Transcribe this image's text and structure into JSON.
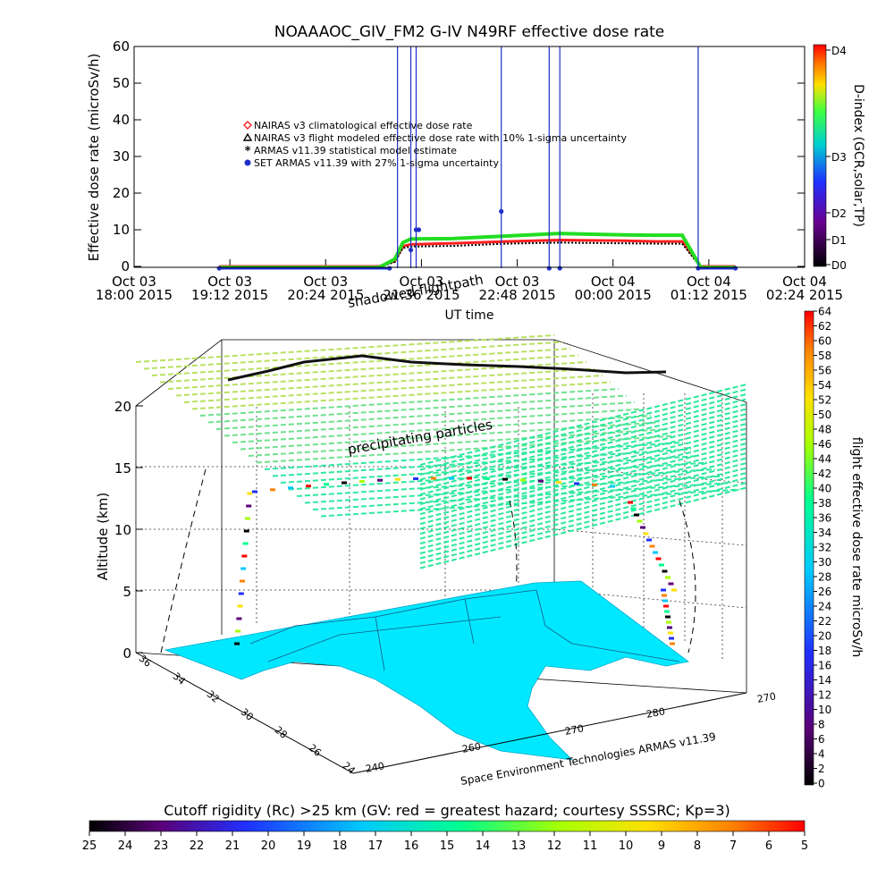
{
  "chart_data": [
    {
      "type": "line",
      "title": "NOAAAOC_GIV_FM2  G-IV    N49RF  effective dose rate",
      "ylabel": "Effective dose rate  (microSv/h)",
      "xlabel": "UT time",
      "ylim": [
        0,
        60
      ],
      "yticks": [
        "0",
        "10",
        "20",
        "30",
        "40",
        "50",
        "60"
      ],
      "xtick_lines": [
        [
          "Oct 03",
          "18:00 2015"
        ],
        [
          "Oct 03",
          "19:12 2015"
        ],
        [
          "Oct 03",
          "20:24 2015"
        ],
        [
          "Oct 03",
          "21:36 2015"
        ],
        [
          "Oct 03",
          "22:48 2015"
        ],
        [
          "Oct 04",
          "00:00 2015"
        ],
        [
          "Oct 04",
          "01:12 2015"
        ],
        [
          "Oct 04",
          "02:24 2015"
        ]
      ],
      "x_hours_since_start": [
        0,
        1.2,
        2.4,
        3.6,
        4.8,
        6.0,
        7.2,
        8.4
      ],
      "legend": [
        {
          "marker": "diamond",
          "color": "#ff2020",
          "label": "NAIRAS v3 climatological effective dose rate"
        },
        {
          "marker": "triangle",
          "color": "#000000",
          "label": "NAIRAS v3 flight modeled effective dose rate with 10% 1-sigma uncertainty"
        },
        {
          "marker": "asterisk",
          "color": "#22cc22",
          "label": "ARMAS v11.39 statistical model estimate"
        },
        {
          "marker": "dot",
          "color": "#1e30c8",
          "label": "SET ARMAS v11.39 with 27% 1-sigma uncertainty"
        }
      ],
      "series": [
        {
          "name": "NAIRAS v3 climatological effective dose rate",
          "points": [
            [
              1.6,
              0
            ],
            [
              4.6,
              0
            ],
            [
              4.9,
              1.5
            ],
            [
              5.05,
              5.5
            ],
            [
              5.2,
              6
            ],
            [
              6,
              6.3
            ],
            [
              7,
              6.8
            ],
            [
              8,
              7.2
            ],
            [
              8.5,
              7.1
            ],
            [
              9.2,
              7.0
            ],
            [
              9.8,
              6.8
            ],
            [
              10.3,
              6.8
            ],
            [
              10.5,
              3
            ],
            [
              10.65,
              0
            ],
            [
              11.3,
              0
            ]
          ]
        },
        {
          "name": "NAIRAS v3 flight modeled effective dose rate with 10% 1-sigma uncertainty",
          "points": [
            [
              1.6,
              -0.2
            ],
            [
              4.6,
              -0.2
            ],
            [
              4.9,
              1.2
            ],
            [
              5.05,
              5
            ],
            [
              5.2,
              5.4
            ],
            [
              6,
              5.6
            ],
            [
              7,
              6.2
            ],
            [
              8,
              6.5
            ],
            [
              8.5,
              6.4
            ],
            [
              9.2,
              6.3
            ],
            [
              9.8,
              6.2
            ],
            [
              10.3,
              6.2
            ],
            [
              10.5,
              2.5
            ],
            [
              10.65,
              -0.2
            ],
            [
              11.3,
              -0.2
            ]
          ]
        },
        {
          "name": "ARMAS v11.39 statistical model estimate",
          "points": [
            [
              1.6,
              -0.3
            ],
            [
              4.6,
              -0.3
            ],
            [
              4.9,
              2
            ],
            [
              5.05,
              6.5
            ],
            [
              5.2,
              7.5
            ],
            [
              6,
              7.6
            ],
            [
              7,
              8.3
            ],
            [
              8,
              9.0
            ],
            [
              8.5,
              8.8
            ],
            [
              9.2,
              8.6
            ],
            [
              9.8,
              8.5
            ],
            [
              10.3,
              8.5
            ],
            [
              10.5,
              3.5
            ],
            [
              10.65,
              -0.3
            ],
            [
              11.3,
              -0.3
            ]
          ]
        },
        {
          "name": "SET ARMAS v11.39 with 27% 1-sigma uncertainty",
          "points": [
            [
              1.6,
              -0.5
            ],
            [
              4.8,
              -0.5
            ],
            [
              5.2,
              4.5
            ],
            [
              5.3,
              10
            ],
            [
              5.35,
              10
            ],
            [
              6.9,
              15
            ],
            [
              7.8,
              -0.5
            ],
            [
              8.0,
              -0.5
            ],
            [
              10.6,
              -0.5
            ],
            [
              11.3,
              -0.5
            ]
          ],
          "spikes_to_top": [
            4.95,
            5.2,
            5.3,
            6.9,
            7.8,
            8.0,
            10.6
          ]
        }
      ],
      "colorbar": {
        "label": "D-index  (GCR,solar,TP)",
        "ticks": [
          "D0",
          "D1",
          "D2",
          "D3",
          "D4"
        ]
      }
    },
    {
      "type": "scatter",
      "subtype": "3d-flight-track",
      "zlabel": "Altitude (km)",
      "zlim": [
        0,
        20
      ],
      "zticks": [
        "0",
        "5",
        "10",
        "15",
        "20"
      ],
      "lat_ticks": [
        "36",
        "34",
        "32",
        "30",
        "28",
        "26",
        "24"
      ],
      "lon_ticks": [
        "240",
        "260",
        "270",
        "280"
      ],
      "annotations": [
        "shadowed flightpath",
        "precipitating particles"
      ],
      "credit": "Space Environment Technologies ARMAS v11.39",
      "colorbar": {
        "label": "flight effective dose rate microSv/h",
        "ticks": [
          "0",
          "2",
          "4",
          "6",
          "8",
          "10",
          "12",
          "14",
          "16",
          "18",
          "20",
          "22",
          "24",
          "26",
          "28",
          "30",
          "32",
          "34",
          "36",
          "38",
          "40",
          "42",
          "44",
          "46",
          "48",
          "50",
          "52",
          "54",
          "56",
          "58",
          "60",
          "62",
          "64"
        ]
      }
    },
    {
      "type": "colorbar",
      "title": "Cutoff rigidity (Rc) >25 km (GV: red = greatest hazard; courtesy SSSRC; Kp=3)",
      "ticks": [
        "25",
        "24",
        "23",
        "22",
        "21",
        "20",
        "19",
        "18",
        "17",
        "16",
        "15",
        "14",
        "13",
        "12",
        "11",
        "10",
        "9",
        "8",
        "7",
        "6",
        "5"
      ]
    }
  ],
  "colors": {
    "rainbow": [
      "#000000",
      "#5a0078",
      "#2a2aff",
      "#00c8ff",
      "#00ff90",
      "#a8ff00",
      "#ffe000",
      "#ff8000",
      "#ff0000"
    ]
  }
}
